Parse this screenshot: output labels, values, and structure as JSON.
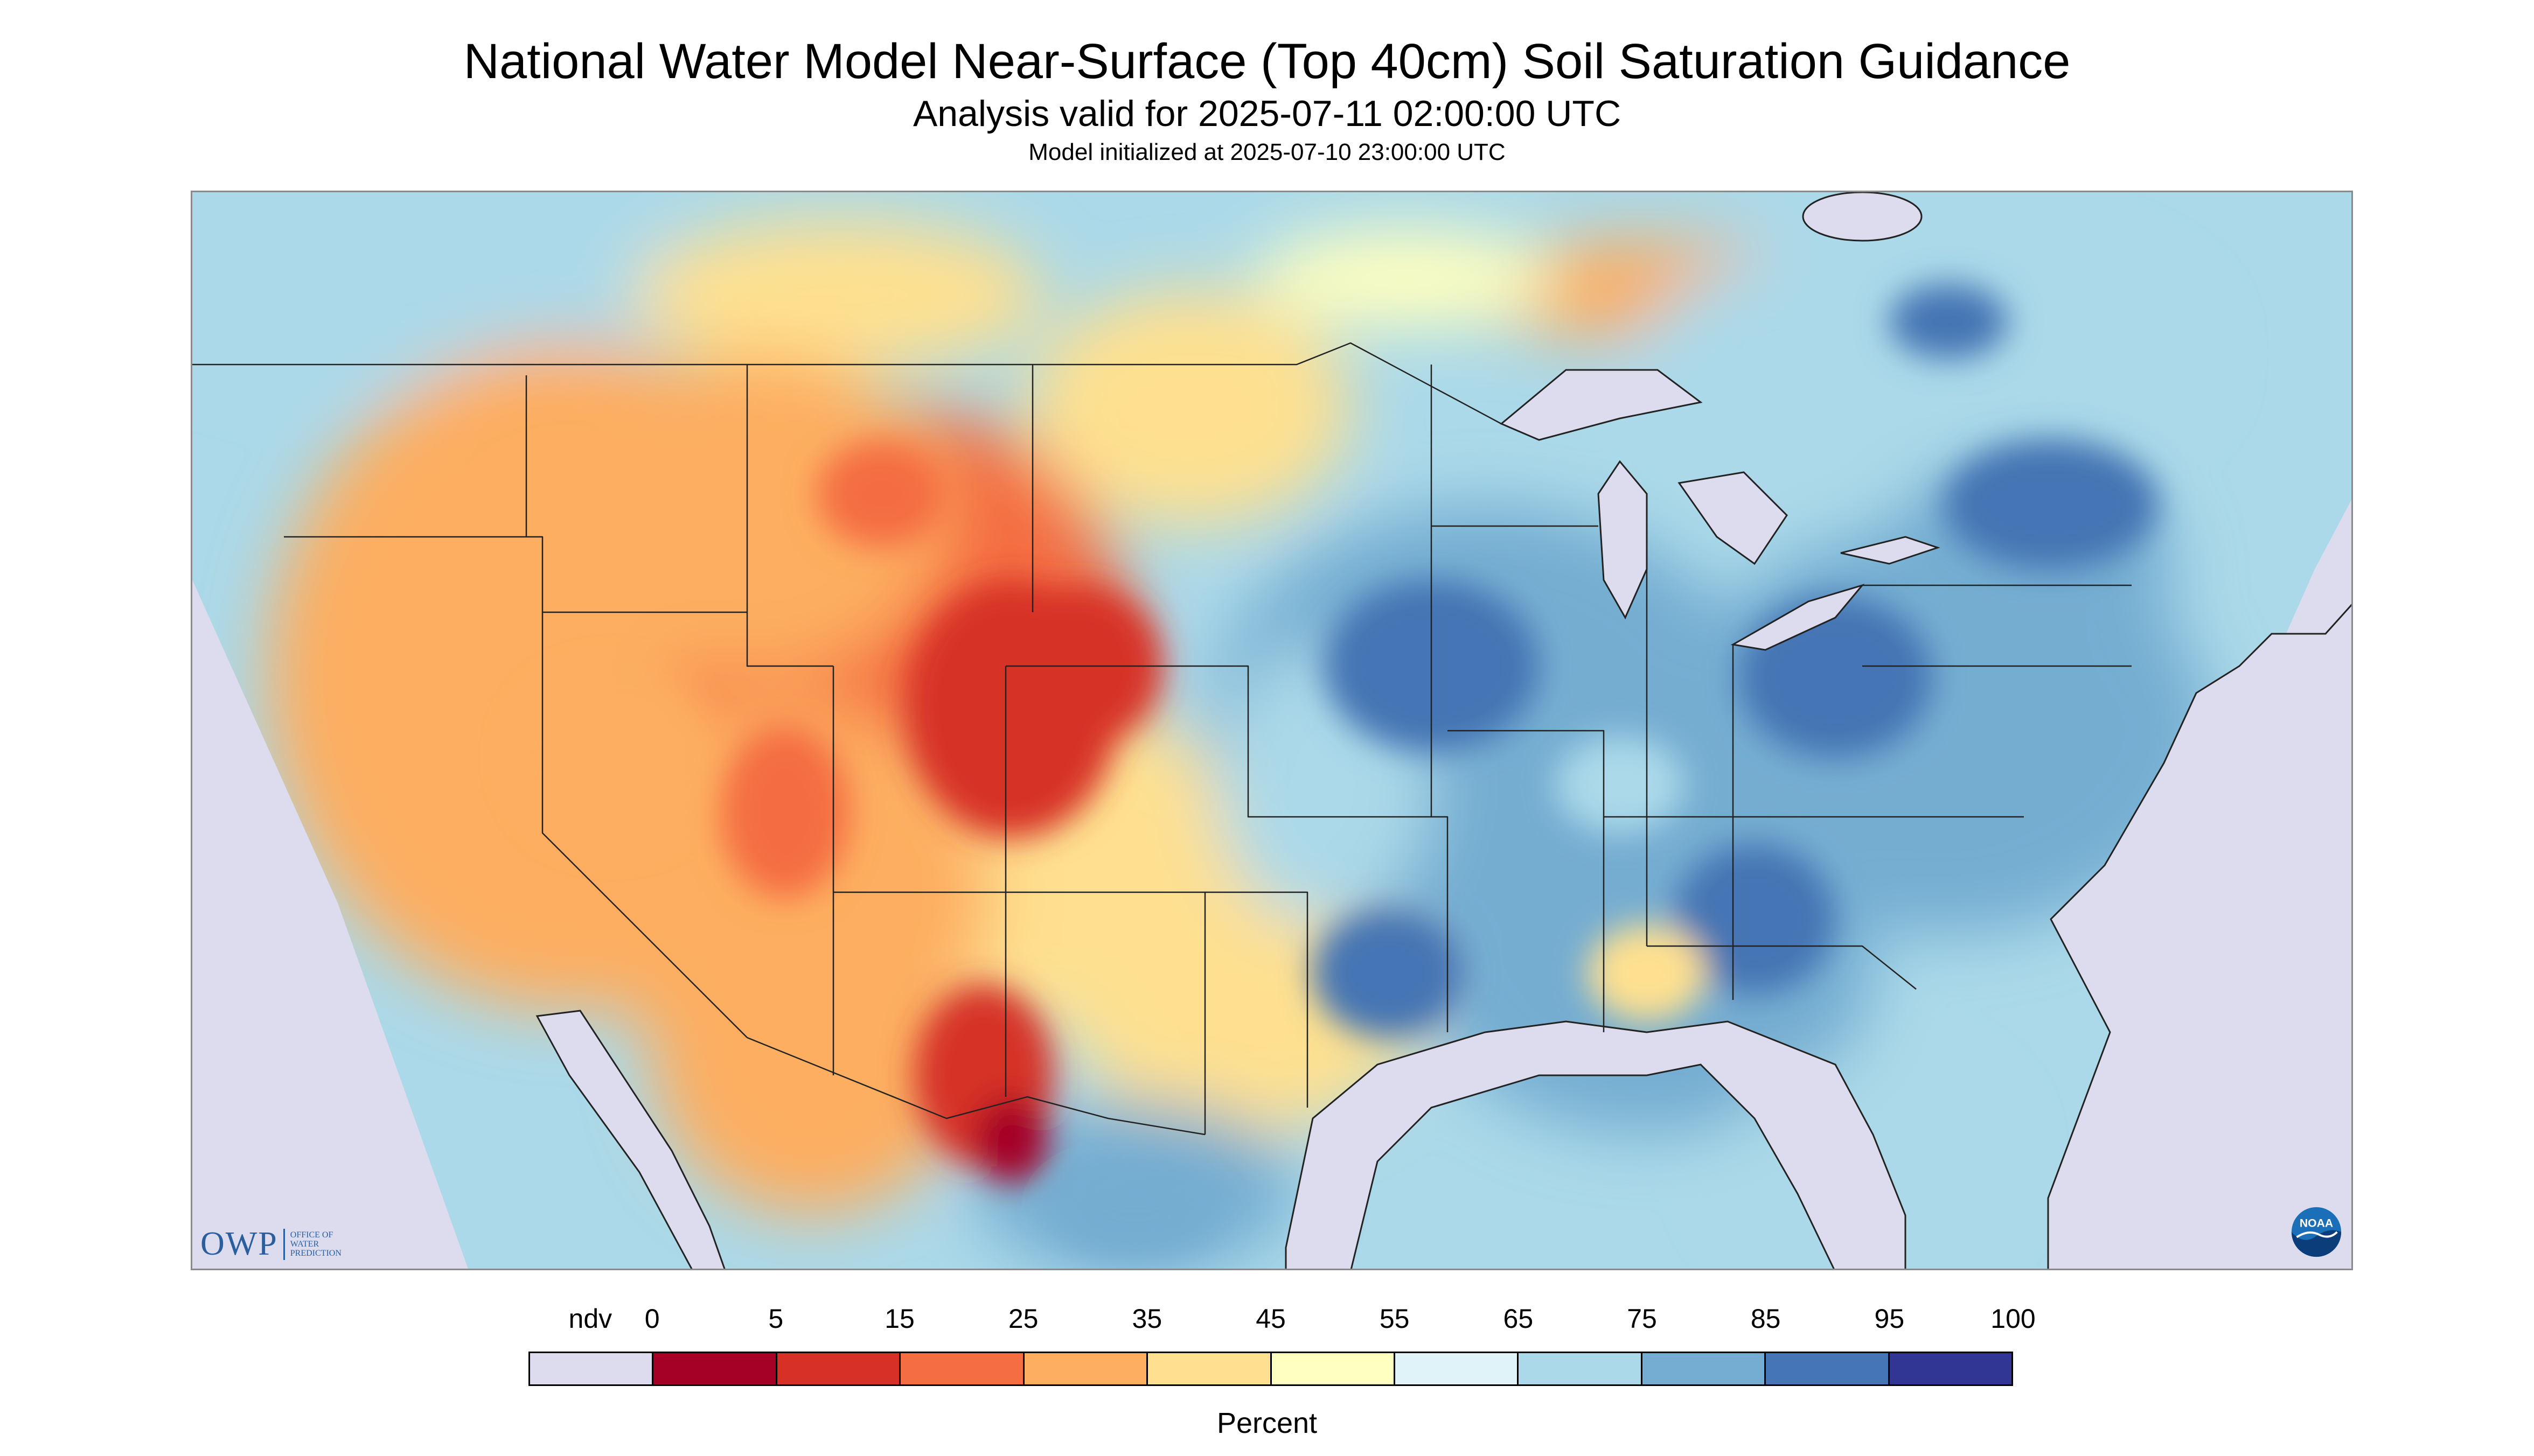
{
  "header": {
    "title": "National Water Model Near-Surface (Top 40cm) Soil Saturation Guidance",
    "subtitle": "Analysis valid for 2025-07-11 02:00:00 UTC",
    "init_line": "Model initialized at 2025-07-10 23:00:00 UTC"
  },
  "logos": {
    "owp_letters": "OWP",
    "owp_line1": "OFFICE OF",
    "owp_line2": "WATER",
    "owp_line3": "PREDICTION",
    "noaa_text": "NOAA"
  },
  "legend": {
    "unit_label": "Percent",
    "tick_labels": [
      "ndv",
      "0",
      "5",
      "15",
      "25",
      "35",
      "45",
      "55",
      "65",
      "75",
      "85",
      "95",
      "100"
    ],
    "colors": [
      "#dcdcee",
      "#a50026",
      "#d73027",
      "#f46d43",
      "#fdae61",
      "#fee090",
      "#ffffbf",
      "#e0f3f8",
      "#abd9e9",
      "#74add1",
      "#4575b4",
      "#313695"
    ]
  },
  "map": {
    "colors": {
      "nodata": "#dcdcee",
      "water": "#dcdcee",
      "boundary": "#222222"
    }
  }
}
